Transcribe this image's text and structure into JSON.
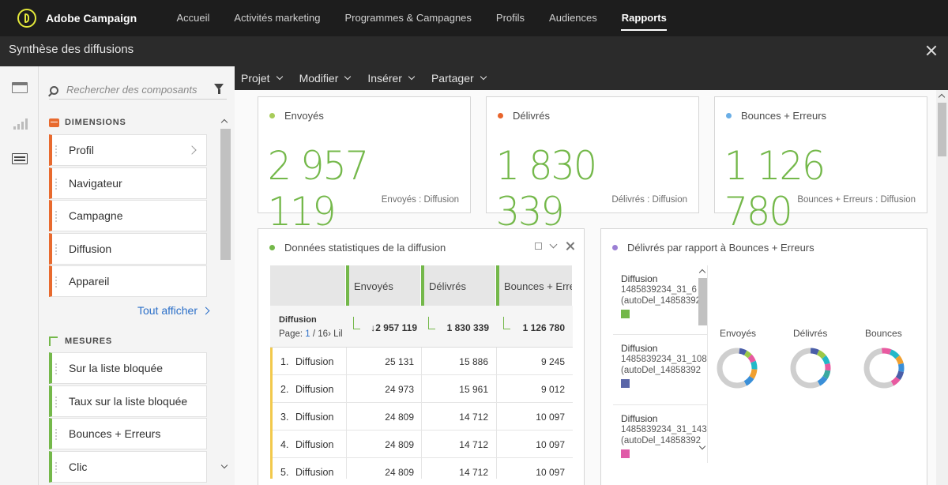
{
  "app": {
    "name": "Adobe Campaign"
  },
  "nav": [
    "Accueil",
    "Activités marketing",
    "Programmes & Campagnes",
    "Profils",
    "Audiences",
    "Rapports"
  ],
  "nav_active": "Rapports",
  "page_title": "Synthèse des diffusions",
  "menu": [
    "Projet",
    "Modifier",
    "Insérer",
    "Partager"
  ],
  "components": {
    "search_placeholder": "Rechercher des composants",
    "dimensions_title": "DIMENSIONS",
    "dimensions": [
      "Profil",
      "Navigateur",
      "Campagne",
      "Diffusion",
      "Appareil"
    ],
    "show_all": "Tout afficher",
    "measures_title": "MESURES",
    "measures": [
      "Sur la liste bloquée",
      "Taux sur la liste bloquée",
      "Bounces + Erreurs",
      "Clic"
    ]
  },
  "kpis": [
    {
      "title": "Envoyés",
      "value": "2 957 119",
      "sub": "Envoyés : Diffusion",
      "dot": "#a8cc5a"
    },
    {
      "title": "Délivrés",
      "value": "1 830 339",
      "sub": "Délivrés : Diffusion",
      "dot": "#e8642c"
    },
    {
      "title": "Bounces + Erreurs",
      "value": "1 126 780",
      "sub": "Bounces + Erreurs : Diffusion",
      "dot": "#6aaee6"
    }
  ],
  "table_panel": {
    "title": "Données statistiques de la diffusion",
    "dot": "#74b84a",
    "columns": [
      "Envoyés",
      "Délivrés",
      "Bounces + Erreurs"
    ],
    "dimension": "Diffusion",
    "page_prefix": "Page:",
    "page_current": "1",
    "page_total": "/ 16",
    "page_extra": "Lil",
    "totals": [
      "2 957 119",
      "1 830 339",
      "1 126 780"
    ],
    "rows": [
      {
        "num": "1.",
        "name": "Diffusion",
        "values": [
          "25 131",
          "15 886",
          "9 245"
        ]
      },
      {
        "num": "2.",
        "name": "Diffusion",
        "values": [
          "24 973",
          "15 961",
          "9 012"
        ]
      },
      {
        "num": "3.",
        "name": "Diffusion",
        "values": [
          "24 809",
          "14 712",
          "10 097"
        ]
      },
      {
        "num": "4.",
        "name": "Diffusion",
        "values": [
          "24 809",
          "14 712",
          "10 097"
        ]
      },
      {
        "num": "5.",
        "name": "Diffusion",
        "values": [
          "24 809",
          "14 712",
          "10 097"
        ]
      }
    ]
  },
  "donut_panel": {
    "title": "Délivrés par rapport à Bounces + Erreurs",
    "dot": "#9b7fd4",
    "legend": [
      {
        "t1": "Diffusion",
        "t2": "1485839234_31_6",
        "t3": "(autoDel_14858392",
        "color": "#74b84a"
      },
      {
        "t1": "Diffusion",
        "t2": "1485839234_31_108",
        "t3": "(autoDel_14858392",
        "color": "#5a66a8"
      },
      {
        "t1": "Diffusion",
        "t2": "1485839234_31_143",
        "t3": "(autoDel_14858392",
        "color": "#e05aa8"
      }
    ],
    "donuts": [
      {
        "label": "Envoyés",
        "segments": [
          [
            "#cfcfcf",
            0.52
          ],
          [
            "#4a5ea8",
            0.06
          ],
          [
            "#9bc848",
            0.05
          ],
          [
            "#e85aa0",
            0.06
          ],
          [
            "#22b8c8",
            0.07
          ],
          [
            "#f0a030",
            0.08
          ],
          [
            "#3a8fd8",
            0.08
          ],
          [
            "#cfcfcf",
            0.08
          ]
        ]
      },
      {
        "label": "Délivrés",
        "segments": [
          [
            "#cfcfcf",
            0.5
          ],
          [
            "#4a5ea8",
            0.07
          ],
          [
            "#9bc848",
            0.07
          ],
          [
            "#22b8c8",
            0.07
          ],
          [
            "#e85aa0",
            0.06
          ],
          [
            "#3aa8a0",
            0.07
          ],
          [
            "#3a8fd8",
            0.08
          ],
          [
            "#cfcfcf",
            0.08
          ]
        ]
      },
      {
        "label": "Bounces",
        "segments": [
          [
            "#cfcfcf",
            0.48
          ],
          [
            "#e85aa0",
            0.08
          ],
          [
            "#22b8c8",
            0.08
          ],
          [
            "#f0a030",
            0.07
          ],
          [
            "#3a8fd8",
            0.07
          ],
          [
            "#4a5ea8",
            0.07
          ],
          [
            "#e85aa0",
            0.07
          ],
          [
            "#cfcfcf",
            0.08
          ]
        ]
      }
    ]
  }
}
